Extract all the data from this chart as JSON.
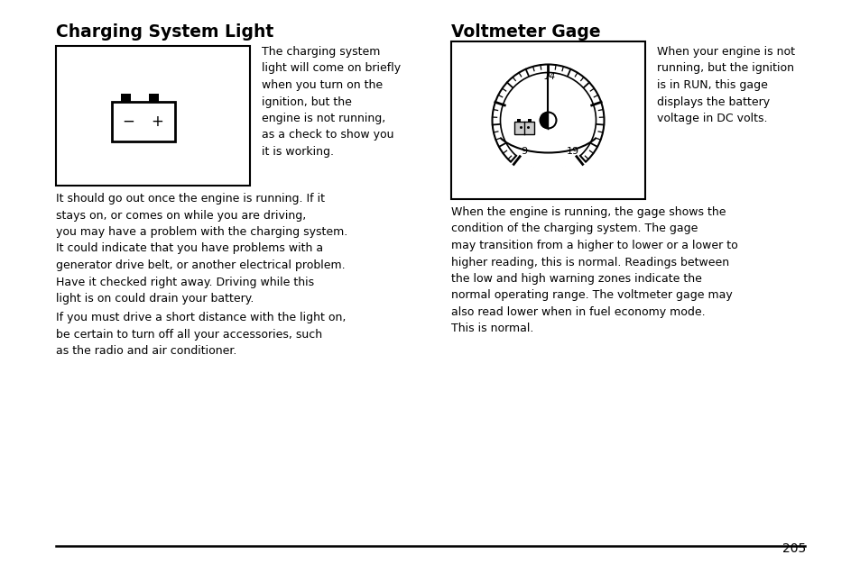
{
  "title_left": "Charging System Light",
  "title_right": "Voltmeter Gage",
  "text_battery_desc": "The charging system\nlight will come on briefly\nwhen you turn on the\nignition, but the\nengine is not running,\nas a check to show you\nit is working.",
  "text_battery_para1": "It should go out once the engine is running. If it\nstays on, or comes on while you are driving,\nyou may have a problem with the charging system.\nIt could indicate that you have problems with a\ngenerator drive belt, or another electrical problem.\nHave it checked right away. Driving while this\nlight is on could drain your battery.",
  "text_battery_para2": "If you must drive a short distance with the light on,\nbe certain to turn off all your accessories, such\nas the radio and air conditioner.",
  "text_volt_desc": "When your engine is not\nrunning, but the ignition\nis in RUN, this gage\ndisplays the battery\nvoltage in DC volts.",
  "text_volt_para": "When the engine is running, the gage shows the\ncondition of the charging system. The gage\nmay transition from a higher to lower or a lower to\nhigher reading, this is normal. Readings between\nthe low and high warning zones indicate the\nnormal operating range. The voltmeter gage may\nalso read lower when in fuel economy mode.\nThis is normal.",
  "page_number": "205",
  "bg_color": "#ffffff",
  "text_color": "#000000"
}
